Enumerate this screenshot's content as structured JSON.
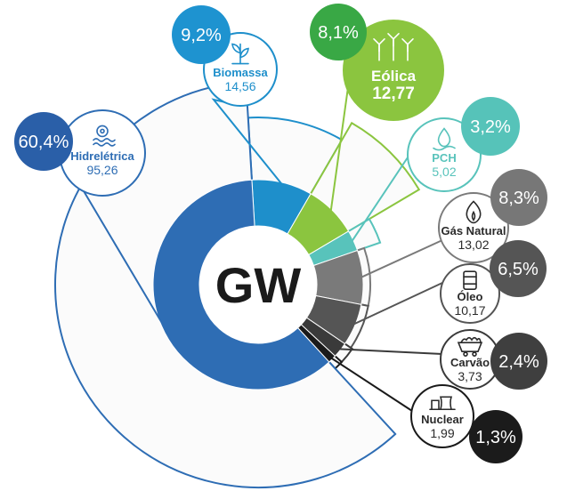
{
  "center_label": "GW",
  "chart_data": {
    "type": "pie",
    "unit": "GW",
    "categories": [
      "Hidrelétrica",
      "Biomassa",
      "Eólica",
      "PCH",
      "Gás Natural",
      "Óleo",
      "Carvão",
      "Nuclear"
    ],
    "values": [
      95.26,
      14.56,
      12.77,
      5.02,
      13.02,
      10.17,
      3.73,
      1.99
    ],
    "series": [
      {
        "name": "Hidrelétrica",
        "value": 95.26,
        "value_label": "95,26",
        "percent": 60.4,
        "percent_label": "60,4%",
        "color": "#2e6db4",
        "badge_color": "#2a5fa8",
        "icon": "hydro-icon"
      },
      {
        "name": "Biomassa",
        "value": 14.56,
        "value_label": "14,56",
        "percent": 9.2,
        "percent_label": "9,2%",
        "color": "#1e8fcb",
        "badge_color": "#1e93d0",
        "icon": "biomass-icon"
      },
      {
        "name": "Eólica",
        "value": 12.77,
        "value_label": "12,77",
        "percent": 8.1,
        "percent_label": "8,1%",
        "color": "#8bc53f",
        "badge_color": "#39a845",
        "icon": "wind-turbine-icon"
      },
      {
        "name": "PCH",
        "value": 5.02,
        "value_label": "5,02",
        "percent": 3.2,
        "percent_label": "3,2%",
        "color": "#58c3bb",
        "badge_color": "#56c3b9",
        "icon": "water-drop-icon"
      },
      {
        "name": "Gás Natural",
        "value": 13.02,
        "value_label": "13,02",
        "percent": 8.3,
        "percent_label": "8,3%",
        "color": "#7a7a7a",
        "badge_color": "#777777",
        "icon": "flame-icon"
      },
      {
        "name": "Óleo",
        "value": 10.17,
        "value_label": "10,17",
        "percent": 6.5,
        "percent_label": "6,5%",
        "color": "#555555",
        "badge_color": "#555555",
        "icon": "oil-barrel-icon"
      },
      {
        "name": "Carvão",
        "value": 3.73,
        "value_label": "3,73",
        "percent": 2.4,
        "percent_label": "2,4%",
        "color": "#3a3a3a",
        "badge_color": "#3f3f3f",
        "icon": "coal-cart-icon"
      },
      {
        "name": "Nuclear",
        "value": 1.99,
        "value_label": "1,99",
        "percent": 1.3,
        "percent_label": "1,3%",
        "color": "#1a1a1a",
        "badge_color": "#1b1b1b",
        "icon": "nuclear-plant-icon"
      }
    ]
  }
}
